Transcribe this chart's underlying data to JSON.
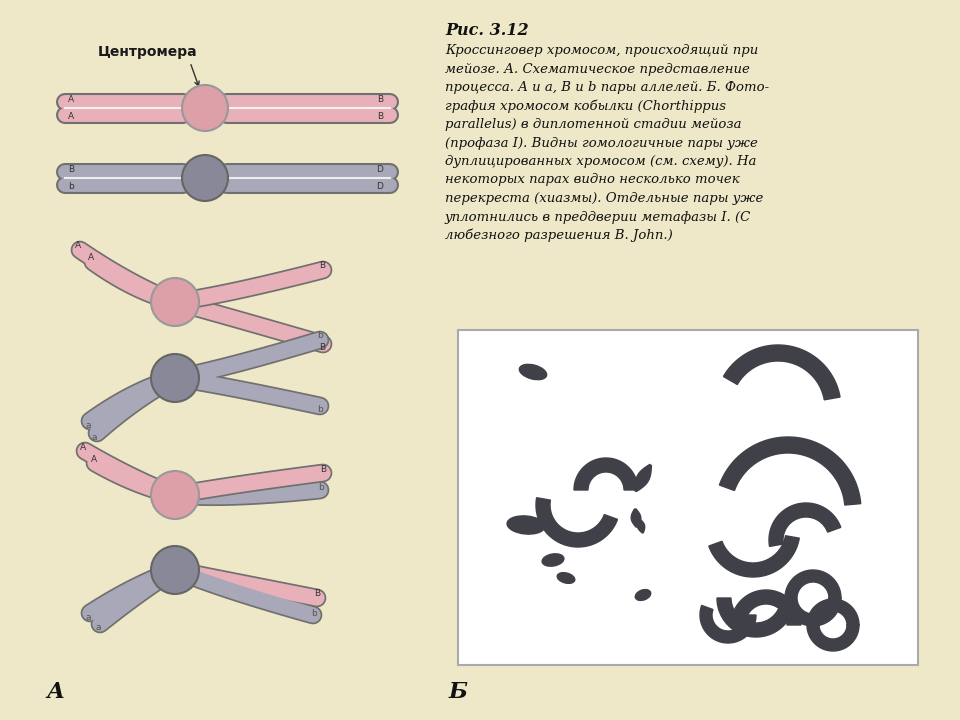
{
  "bg_color": "#eee8c8",
  "title": "Рис. 3.12",
  "caption_bold_part": "Рис. 3.12",
  "caption_lines": [
    "Кроссинговер хромосом, происходящий при",
    "мейозе. А. Схематическое представление",
    "процесса. A и a, B и b пары аллелей. Б. Фото-",
    "графия хромосом кобылки (Chorthippus",
    "parallelus) в диплотенной стадии мейоза",
    "(профаза I). Видны гомологичные пары уже",
    "дуплицированных хромосом (см. схему). На",
    "некоторых парах видно несколько точек",
    "перекреста (хиазмы). Отдельные пары уже",
    "уплотнились в преддверии метафазы I. (С",
    "любезного разрешения B. John.)"
  ],
  "centromera_label": "Центромера",
  "label_A": "А",
  "label_B": "Б",
  "pink_color": "#e8b0b8",
  "pink_centromere": "#cc8888",
  "pink_centromere_light": "#dda0a8",
  "gray_color": "#a8a8b8",
  "gray_centromere": "#888898",
  "outline_color": "#707070",
  "photo_bg": "#ffffff",
  "photo_outline": "#aaaaaa",
  "dark_chrom": "#404048"
}
